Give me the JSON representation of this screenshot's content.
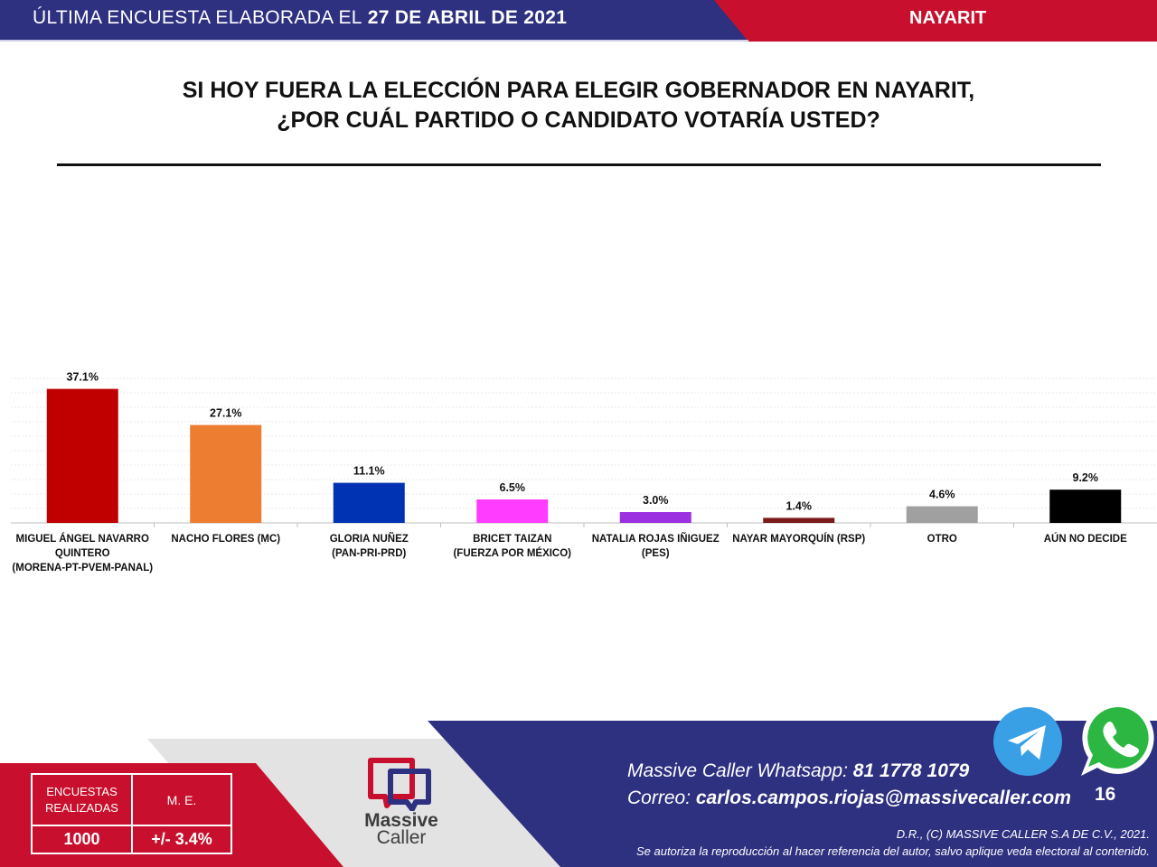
{
  "header": {
    "prefix": "ÚLTIMA ENCUESTA ELABORADA EL",
    "date": "27 DE ABRIL DE 2021",
    "region": "NAYARIT"
  },
  "title": {
    "line1": "SI HOY FUERA LA ELECCIÓN PARA ELEGIR GOBERNADOR EN NAYARIT,",
    "line2": "¿POR CUÁL PARTIDO O CANDIDATO VOTARÍA USTED?"
  },
  "chart_data": {
    "type": "bar",
    "categories": [
      [
        "MIGUEL ÁNGEL NAVARRO",
        "QUINTERO",
        "(MORENA-PT-PVEM-PANAL)"
      ],
      [
        "NACHO FLORES (MC)"
      ],
      [
        "GLORIA NUÑEZ",
        "(PAN-PRI-PRD)"
      ],
      [
        "BRICET TAIZAN",
        "(FUERZA POR MÉXICO)"
      ],
      [
        "NATALIA ROJAS IÑIGUEZ",
        "(PES)"
      ],
      [
        "NAYAR MAYORQUÍN (RSP)"
      ],
      [
        "OTRO"
      ],
      [
        "AÚN NO DECIDE"
      ]
    ],
    "values": [
      37.1,
      27.1,
      11.1,
      6.5,
      3.0,
      1.4,
      4.6,
      9.2
    ],
    "value_labels": [
      "37.1%",
      "27.1%",
      "11.1%",
      "6.5%",
      "3.0%",
      "1.4%",
      "4.6%",
      "9.2%"
    ],
    "colors": [
      "#c00000",
      "#ed7d31",
      "#0033b3",
      "#ff3cff",
      "#9b30e0",
      "#7b1a1a",
      "#a0a0a0",
      "#000000"
    ],
    "ylim": [
      0,
      40
    ],
    "grid": true,
    "legend": "none"
  },
  "footer": {
    "stats": {
      "surveys_label": "ENCUESTAS REALIZADAS",
      "margin_label": "M. E.",
      "surveys_value": "1000",
      "margin_value": "+/- 3.4%"
    },
    "brand_line1": "Massive",
    "brand_line2": "Caller",
    "whatsapp_label": "Massive Caller Whatsapp:",
    "whatsapp_number": "81 1778 1079",
    "email_label": "Correo:",
    "email": "carlos.campos.riojas@massivecaller.com",
    "page_number": "16",
    "copyright": "D.R., (C) MASSIVE CALLER S.A DE C.V., 2021.",
    "notice": "Se autoriza la reproducción al hacer referencia del autor, salvo aplique veda electoral al contenido.",
    "icons": [
      "telegram-icon",
      "whatsapp-icon",
      "massive-caller-logo"
    ]
  }
}
